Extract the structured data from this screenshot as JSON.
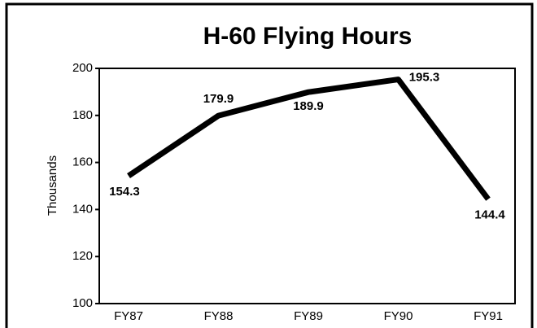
{
  "chart_data": {
    "type": "line",
    "title": "H-60 Flying Hours",
    "ylabel": "Thousands",
    "categories": [
      "FY87",
      "FY88",
      "FY89",
      "FY90",
      "FY91"
    ],
    "series": [
      {
        "color": "#000000",
        "values": [
          154.3,
          179.9,
          189.9,
          195.3,
          144.4
        ]
      }
    ],
    "ylim": [
      100,
      200
    ],
    "yticks": [
      100,
      120,
      140,
      160,
      180,
      200
    ]
  }
}
